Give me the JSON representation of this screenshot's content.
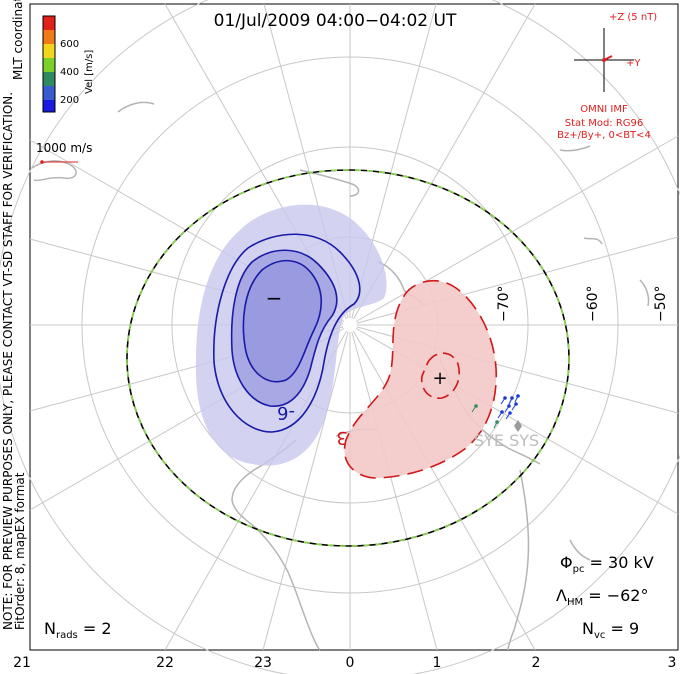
{
  "title": "01/Jul/2009 04:00−04:02 UT",
  "colorbar": {
    "label": "Vel [m/s]",
    "ticks": [
      "600",
      "400",
      "200"
    ],
    "colors": [
      "#e0201a",
      "#f07a1a",
      "#f2d61e",
      "#7cd02a",
      "#2e8a60",
      "#3a5ad0",
      "#1a1ae0"
    ]
  },
  "coordinates_label": "MLT coordinates",
  "reference_vector": {
    "label": "1000 m/s"
  },
  "notice_line1": "NOTE: FOR PREVIEW PURPOSES ONLY, PLEASE CONTACT VT-SD STAFF FOR VERIFICATION.",
  "notice_line2": "FitOrder: 8, mapEX format",
  "imf": {
    "z_label": "+Z (5 nT)",
    "y_label": "+Y",
    "source": "OMNI IMF",
    "model_line1": "Stat Mod: RG96",
    "model_line2": "Bz+/By+, 0<BT<4"
  },
  "latitude_labels": [
    "−70°",
    "−60°",
    "−50°"
  ],
  "mlt_labels": [
    "21",
    "22",
    "23",
    "0",
    "1",
    "2",
    "3"
  ],
  "contour_labels": {
    "min_sign": "−",
    "max_sign": "+",
    "neg_value": "-6",
    "pos_value": "3"
  },
  "station_label": "SYE SYS",
  "stats": {
    "phi_pc": "30 kV",
    "lambda_hm": "−62°",
    "n_vc": "9",
    "n_rads": "2"
  },
  "stat_symbols": {
    "phi": "Φ",
    "phi_sub": "pc",
    "lambda": "Λ",
    "lambda_sub": "HM",
    "n": "N",
    "nvc_sub": "vc",
    "nrads_sub": "rads"
  },
  "colors": {
    "negative_contour": "#1a1aa8",
    "positive_contour": "#d01818",
    "negative_fill": "#c8c8ee",
    "positive_fill": "#f3c8c8",
    "grid": "#c8c8c8",
    "coastline": "#b4b4b4",
    "hm_boundary_dash": "#8ad44a",
    "imf_color": "#e02020"
  }
}
